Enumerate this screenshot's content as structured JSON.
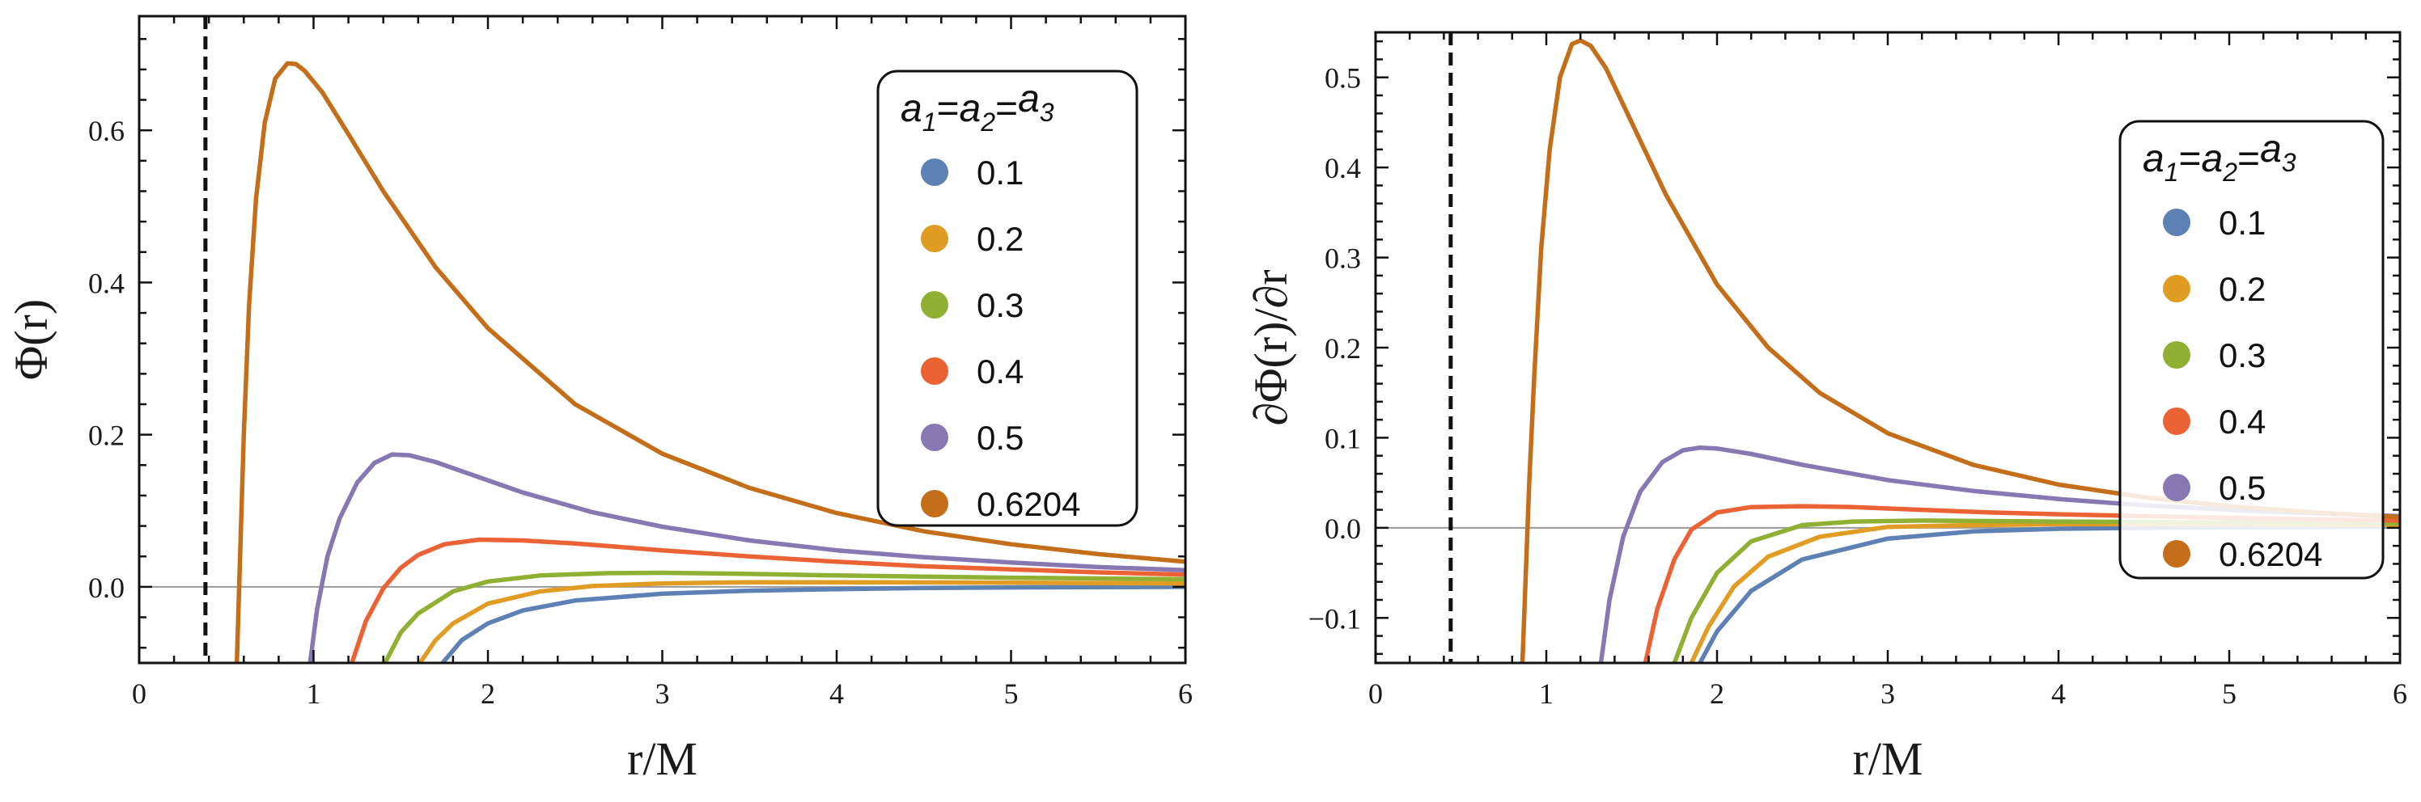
{
  "chart_data": [
    {
      "type": "line",
      "id": "left",
      "xlabel": "r/M",
      "ylabel": "Φ(r)",
      "xlim": [
        0,
        6
      ],
      "ylim": [
        -0.1,
        0.75
      ],
      "xticks": [
        0,
        1,
        2,
        3,
        4,
        5,
        6
      ],
      "xtick_labels": [
        "0",
        "1",
        "2",
        "3",
        "4",
        "5",
        "6"
      ],
      "yticks": [
        0.0,
        0.2,
        0.4,
        0.6
      ],
      "ytick_labels": [
        "0.0",
        "0.2",
        "0.4",
        "0.6"
      ],
      "reference_line": {
        "x": 0.38,
        "style": "dashed"
      },
      "zero_line": true,
      "legend": {
        "title_base": "a",
        "title_subs": [
          "1",
          "2",
          "3"
        ],
        "title_sep": "=",
        "position": "top-right",
        "entries": [
          "0.1",
          "0.2",
          "0.3",
          "0.4",
          "0.5",
          "0.6204"
        ]
      },
      "series": [
        {
          "name": "0.1",
          "color": "#5e81b5",
          "x": [
            1.74,
            1.85,
            2.0,
            2.2,
            2.5,
            3.0,
            3.5,
            4.0,
            4.5,
            5.0,
            5.5,
            6.0
          ],
          "y": [
            -0.1,
            -0.07,
            -0.048,
            -0.031,
            -0.018,
            -0.009,
            -0.005,
            -0.003,
            -0.0015,
            -0.0008,
            -0.0003,
            0.0
          ]
        },
        {
          "name": "0.2",
          "color": "#e19c24",
          "x": [
            1.61,
            1.7,
            1.8,
            2.0,
            2.3,
            2.6,
            3.0,
            3.5,
            4.0,
            4.5,
            5.0,
            5.5,
            6.0
          ],
          "y": [
            -0.1,
            -0.07,
            -0.048,
            -0.022,
            -0.006,
            0.001,
            0.0045,
            0.006,
            0.006,
            0.0058,
            0.0055,
            0.005,
            0.0045
          ]
        },
        {
          "name": "0.3",
          "color": "#8fb032",
          "x": [
            1.41,
            1.5,
            1.6,
            1.8,
            2.0,
            2.3,
            2.7,
            3.0,
            3.5,
            4.0,
            4.5,
            5.0,
            5.5,
            6.0
          ],
          "y": [
            -0.1,
            -0.06,
            -0.035,
            -0.006,
            0.007,
            0.015,
            0.018,
            0.0185,
            0.017,
            0.015,
            0.0135,
            0.012,
            0.011,
            0.01
          ]
        },
        {
          "name": "0.4",
          "color": "#eb6235",
          "x": [
            1.22,
            1.3,
            1.4,
            1.5,
            1.6,
            1.75,
            1.95,
            2.2,
            2.5,
            3.0,
            3.5,
            4.0,
            4.5,
            5.0,
            5.5,
            6.0
          ],
          "y": [
            -0.1,
            -0.045,
            -0.002,
            0.025,
            0.042,
            0.056,
            0.062,
            0.061,
            0.057,
            0.048,
            0.04,
            0.033,
            0.027,
            0.023,
            0.019,
            0.016
          ]
        },
        {
          "name": "0.5",
          "color": "#8778b3",
          "x": [
            0.98,
            1.02,
            1.08,
            1.15,
            1.25,
            1.35,
            1.45,
            1.55,
            1.7,
            1.9,
            2.2,
            2.6,
            3.0,
            3.5,
            4.0,
            4.5,
            5.0,
            5.5,
            6.0
          ],
          "y": [
            -0.1,
            -0.03,
            0.04,
            0.09,
            0.137,
            0.163,
            0.174,
            0.173,
            0.164,
            0.148,
            0.124,
            0.098,
            0.079,
            0.061,
            0.048,
            0.039,
            0.032,
            0.026,
            0.022
          ]
        },
        {
          "name": "0.6204",
          "color": "#c56e1a",
          "x": [
            0.56,
            0.58,
            0.6,
            0.63,
            0.67,
            0.72,
            0.78,
            0.85,
            0.9,
            0.95,
            1.05,
            1.2,
            1.4,
            1.7,
            2.0,
            2.5,
            3.0,
            3.5,
            4.0,
            4.5,
            5.0,
            5.5,
            6.0
          ],
          "y": [
            -0.1,
            0.05,
            0.2,
            0.37,
            0.51,
            0.61,
            0.668,
            0.688,
            0.687,
            0.678,
            0.65,
            0.595,
            0.52,
            0.42,
            0.34,
            0.24,
            0.175,
            0.13,
            0.097,
            0.073,
            0.056,
            0.043,
            0.033
          ]
        }
      ]
    },
    {
      "type": "line",
      "id": "right",
      "xlabel": "r/M",
      "ylabel": "∂Φ(r)/∂r",
      "xlim": [
        0,
        6
      ],
      "ylim": [
        -0.15,
        0.55
      ],
      "xticks": [
        0,
        1,
        2,
        3,
        4,
        5,
        6
      ],
      "xtick_labels": [
        "0",
        "1",
        "2",
        "3",
        "4",
        "5",
        "6"
      ],
      "yticks": [
        -0.1,
        0.0,
        0.1,
        0.2,
        0.3,
        0.4,
        0.5
      ],
      "ytick_labels": [
        "−0.1",
        "0.0",
        "0.1",
        "0.2",
        "0.3",
        "0.4",
        "0.5"
      ],
      "reference_line": {
        "x": 0.44,
        "style": "dashed"
      },
      "zero_line": true,
      "legend": {
        "title_base": "a",
        "title_subs": [
          "1",
          "2",
          "3"
        ],
        "title_sep": "=",
        "position": "right",
        "entries": [
          "0.1",
          "0.2",
          "0.3",
          "0.4",
          "0.5",
          "0.6204"
        ]
      },
      "series": [
        {
          "name": "0.1",
          "color": "#5e81b5",
          "x": [
            1.9,
            2.0,
            2.2,
            2.5,
            3.0,
            3.5,
            4.0,
            4.5,
            5.0,
            5.5,
            6.0
          ],
          "y": [
            -0.15,
            -0.115,
            -0.07,
            -0.035,
            -0.012,
            -0.004,
            -0.001,
            0.0,
            0.0005,
            0.001,
            0.0015
          ]
        },
        {
          "name": "0.2",
          "color": "#e19c24",
          "x": [
            1.85,
            1.95,
            2.1,
            2.3,
            2.6,
            3.0,
            3.5,
            4.0,
            4.5,
            5.0,
            5.5,
            6.0
          ],
          "y": [
            -0.15,
            -0.11,
            -0.065,
            -0.032,
            -0.01,
            0.001,
            0.003,
            0.004,
            0.004,
            0.004,
            0.0035,
            0.003
          ]
        },
        {
          "name": "0.3",
          "color": "#8fb032",
          "x": [
            1.75,
            1.85,
            2.0,
            2.2,
            2.5,
            2.8,
            3.2,
            3.6,
            4.0,
            4.5,
            5.0,
            5.5,
            6.0
          ],
          "y": [
            -0.15,
            -0.1,
            -0.05,
            -0.015,
            0.003,
            0.007,
            0.008,
            0.0075,
            0.007,
            0.0065,
            0.006,
            0.0055,
            0.005
          ]
        },
        {
          "name": "0.4",
          "color": "#eb6235",
          "x": [
            1.58,
            1.65,
            1.75,
            1.85,
            2.0,
            2.2,
            2.5,
            2.8,
            3.2,
            3.6,
            4.0,
            4.5,
            5.0,
            5.5,
            6.0
          ],
          "y": [
            -0.15,
            -0.09,
            -0.035,
            -0.002,
            0.017,
            0.023,
            0.024,
            0.023,
            0.02,
            0.017,
            0.015,
            0.013,
            0.011,
            0.0095,
            0.008
          ]
        },
        {
          "name": "0.5",
          "color": "#8778b3",
          "x": [
            1.32,
            1.37,
            1.45,
            1.55,
            1.68,
            1.8,
            1.9,
            2.0,
            2.2,
            2.5,
            3.0,
            3.5,
            4.0,
            4.5,
            5.0,
            5.5,
            6.0
          ],
          "y": [
            -0.15,
            -0.08,
            -0.01,
            0.04,
            0.073,
            0.086,
            0.089,
            0.088,
            0.082,
            0.07,
            0.053,
            0.041,
            0.032,
            0.025,
            0.02,
            0.016,
            0.013
          ]
        },
        {
          "name": "0.6204",
          "color": "#c56e1a",
          "x": [
            0.86,
            0.88,
            0.9,
            0.93,
            0.97,
            1.02,
            1.08,
            1.15,
            1.2,
            1.26,
            1.35,
            1.5,
            1.7,
            2.0,
            2.3,
            2.6,
            3.0,
            3.5,
            4.0,
            4.5,
            5.0,
            5.5,
            6.0
          ],
          "y": [
            -0.15,
            -0.05,
            0.05,
            0.17,
            0.31,
            0.42,
            0.5,
            0.537,
            0.541,
            0.535,
            0.51,
            0.45,
            0.37,
            0.27,
            0.2,
            0.15,
            0.105,
            0.07,
            0.048,
            0.034,
            0.024,
            0.017,
            0.012
          ]
        }
      ]
    }
  ]
}
